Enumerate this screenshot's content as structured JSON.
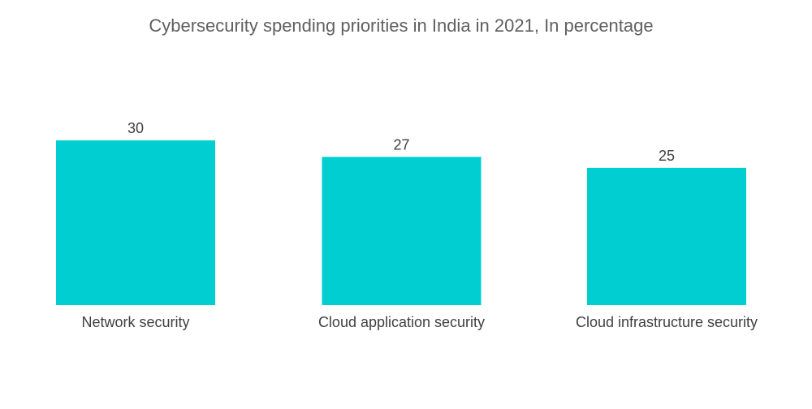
{
  "chart_data": {
    "type": "bar",
    "title": "Cybersecurity spending priorities in India in 2021, In percentage",
    "categories": [
      "Network security",
      "Cloud application security",
      "Cloud infrastructure security"
    ],
    "values": [
      30,
      27,
      25
    ],
    "xlabel": "",
    "ylabel": "",
    "ylim": [
      0,
      30
    ],
    "grid": false,
    "legend": "none",
    "bar_color": "#00CED1"
  }
}
